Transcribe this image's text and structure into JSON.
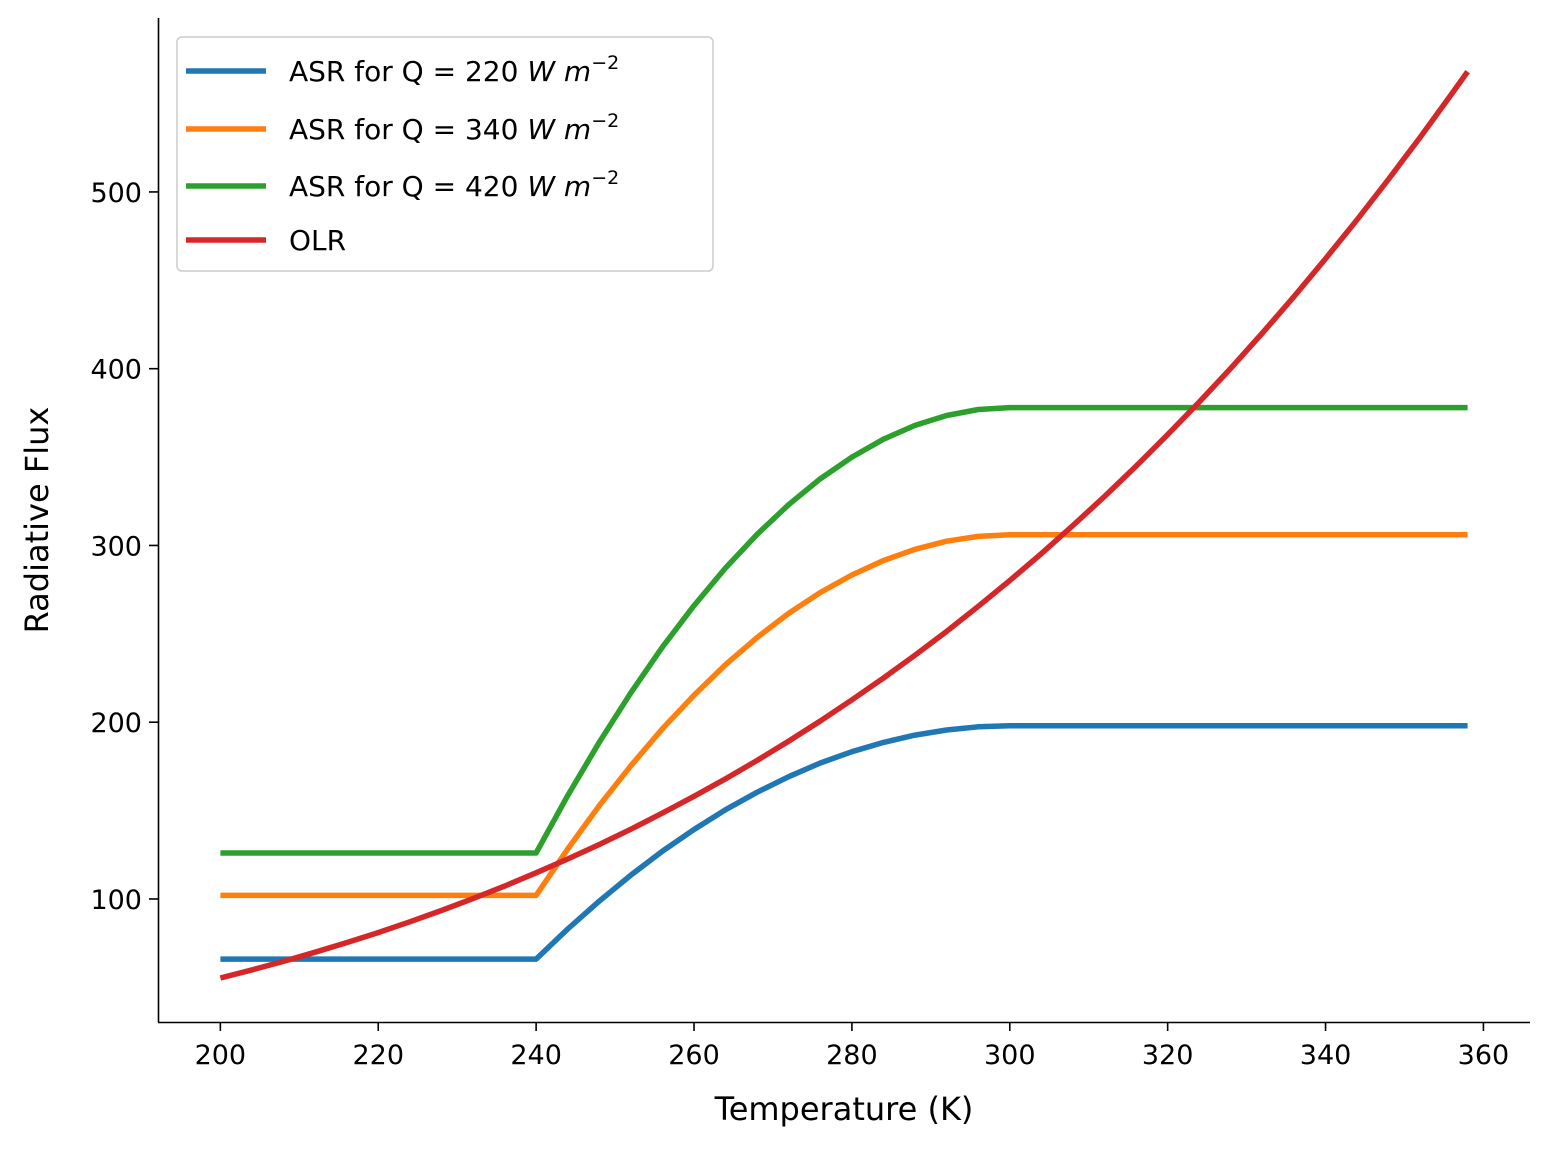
{
  "chart_data": {
    "type": "line",
    "title": "",
    "xlabel": "Temperature (K)",
    "ylabel": "Radiative Flux",
    "xlim": [
      192.1,
      365.9
    ],
    "ylim": [
      30.4,
      598.4
    ],
    "xticks": [
      200,
      220,
      240,
      260,
      280,
      300,
      320,
      340,
      360
    ],
    "yticks": [
      100,
      200,
      300,
      400,
      500
    ],
    "grid": false,
    "legend_position": "top-left",
    "x": [
      200,
      204,
      208,
      212,
      216,
      220,
      224,
      228,
      232,
      236,
      240,
      244,
      248,
      252,
      256,
      260,
      264,
      268,
      272,
      276,
      280,
      284,
      288,
      292,
      296,
      300,
      304,
      308,
      312,
      316,
      320,
      324,
      328,
      332,
      336,
      340,
      344,
      348,
      352,
      356,
      358
    ],
    "series": [
      {
        "name": "ASR for Q = 220 W m^-2",
        "label_prefix": "ASR for Q = 220 ",
        "label_unit": "W m",
        "label_exp": "−2",
        "color": "#1f77b4",
        "values": [
          66,
          66,
          66,
          66,
          66,
          66,
          66,
          66,
          66,
          66,
          66,
          83.0,
          98.8,
          113.5,
          127.0,
          139.3,
          150.5,
          160.4,
          169.2,
          176.9,
          183.3,
          188.6,
          192.7,
          195.6,
          197.4,
          198,
          198,
          198,
          198,
          198,
          198,
          198,
          198,
          198,
          198,
          198,
          198,
          198,
          198,
          198,
          198
        ]
      },
      {
        "name": "ASR for Q = 340 W m^-2",
        "label_prefix": "ASR for Q = 340 ",
        "label_unit": "W m",
        "label_exp": "−2",
        "color": "#ff7f0e",
        "values": [
          102,
          102,
          102,
          102,
          102,
          102,
          102,
          102,
          102,
          102,
          102,
          128.3,
          152.8,
          175.4,
          196.3,
          215.3,
          232.6,
          248.0,
          261.6,
          273.4,
          283.3,
          291.5,
          297.8,
          302.4,
          305.1,
          306,
          306,
          306,
          306,
          306,
          306,
          306,
          306,
          306,
          306,
          306,
          306,
          306,
          306,
          306,
          306
        ]
      },
      {
        "name": "ASR for Q = 420 W m^-2",
        "label_prefix": "ASR for Q = 420 ",
        "label_unit": "W m",
        "label_exp": "−2",
        "color": "#2ca02c",
        "values": [
          126,
          126,
          126,
          126,
          126,
          126,
          126,
          126,
          126,
          126,
          126,
          158.5,
          188.7,
          216.7,
          242.5,
          266.0,
          287.3,
          306.3,
          323.1,
          337.7,
          350.0,
          360.1,
          367.9,
          373.5,
          376.9,
          378,
          378,
          378,
          378,
          378,
          378,
          378,
          378,
          378,
          378,
          378,
          378,
          378,
          378,
          378,
          378
        ]
      },
      {
        "name": "OLR",
        "label_prefix": "OLR",
        "label_unit": "",
        "label_exp": "",
        "color": "#d62728",
        "values": [
          55.3,
          59.9,
          64.7,
          69.9,
          75.3,
          81.0,
          87.1,
          93.5,
          100.2,
          107.3,
          114.8,
          122.6,
          130.8,
          139.5,
          148.6,
          158.1,
          168.0,
          178.4,
          189.3,
          200.7,
          212.6,
          225.0,
          237.9,
          251.4,
          265.5,
          280.2,
          295.4,
          311.3,
          327.7,
          344.9,
          362.7,
          381.1,
          400.3,
          420.2,
          440.8,
          462.2,
          484.3,
          507.3,
          531.0,
          555.5,
          568.1
        ]
      }
    ]
  }
}
